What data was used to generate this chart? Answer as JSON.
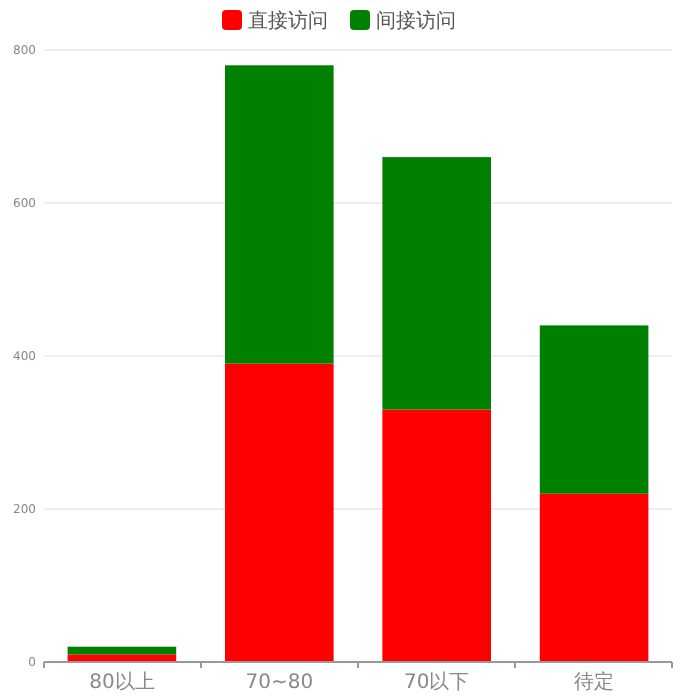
{
  "chart_data": {
    "type": "bar",
    "stacked": true,
    "categories": [
      "80以上",
      "70~80",
      "70以下",
      "待定"
    ],
    "series": [
      {
        "name": "直接访问",
        "color": "#ff0000",
        "values": [
          10,
          390,
          330,
          220
        ]
      },
      {
        "name": "间接访问",
        "color": "#008000",
        "values": [
          10,
          390,
          330,
          220
        ]
      }
    ],
    "ylim": [
      0,
      800
    ],
    "yticks": [
      0,
      200,
      400,
      600,
      800
    ],
    "grid": "y",
    "legend": "top"
  }
}
